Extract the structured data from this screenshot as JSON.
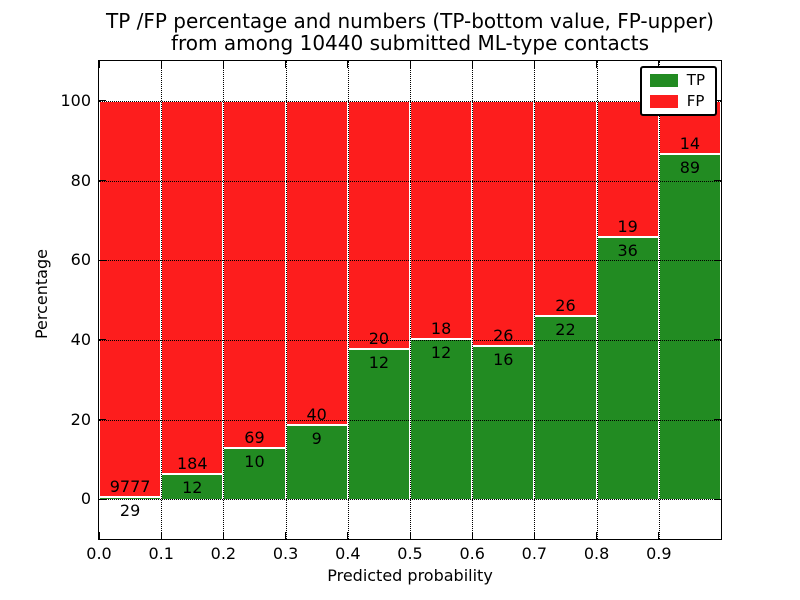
{
  "chart_data": {
    "type": "bar",
    "stacked": true,
    "title_lines": [
      "TP /FP percentage and numbers (TP-bottom value, FP-upper)",
      "from among 10440 submitted ML-type contacts"
    ],
    "xlabel": "Predicted probability",
    "ylabel": "Percentage",
    "xlim": [
      0.0,
      1.0
    ],
    "ylim": [
      -10,
      110
    ],
    "grid": true,
    "legend_position": "upper right",
    "x_ticks": [
      "0.0",
      "0.1",
      "0.2",
      "0.3",
      "0.4",
      "0.5",
      "0.6",
      "0.7",
      "0.8",
      "0.9"
    ],
    "y_ticks": [
      0,
      20,
      40,
      60,
      80,
      100
    ],
    "bin_edges": [
      0.0,
      0.1,
      0.2,
      0.3,
      0.4,
      0.5,
      0.6,
      0.7,
      0.8,
      0.9,
      1.0
    ],
    "series": [
      {
        "name": "TP",
        "color": "#228b22",
        "counts": [
          29,
          12,
          10,
          9,
          12,
          12,
          16,
          22,
          36,
          89
        ]
      },
      {
        "name": "FP",
        "color": "#fd1d1d",
        "counts": [
          9777,
          184,
          69,
          40,
          20,
          18,
          26,
          26,
          19,
          14
        ]
      }
    ],
    "tp_percent": [
      0.3,
      6.1,
      12.7,
      18.4,
      37.5,
      40.0,
      38.1,
      45.8,
      65.5,
      86.4
    ],
    "total_contacts": 10440
  }
}
